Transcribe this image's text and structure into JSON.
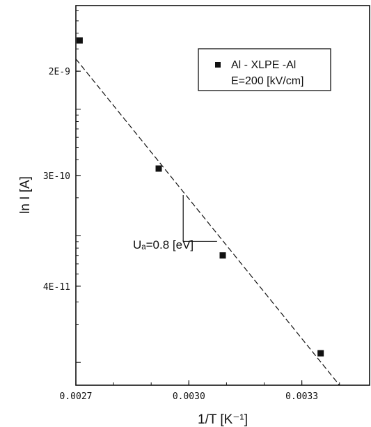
{
  "chart_data": {
    "type": "scatter",
    "xlabel": "1/T [K⁻¹]",
    "ylabel": "ln I [A]",
    "y_scale": "log",
    "xlim": [
      0.0027,
      0.00348
    ],
    "ylim": [
      6.6e-12,
      6.6e-09
    ],
    "xticks": [
      {
        "value": 0.0027,
        "label": "0.0027"
      },
      {
        "value": 0.003,
        "label": "0.0030"
      },
      {
        "value": 0.0033,
        "label": "0.0033"
      }
    ],
    "yticks": [
      {
        "value": 2e-09,
        "label": "2E-9"
      },
      {
        "value": 3e-10,
        "label": "3E-10"
      },
      {
        "value": 4e-11,
        "label": "4E-11"
      }
    ],
    "series": [
      {
        "name": "Al - XLPE -Al",
        "marker": "square",
        "color": "#111111",
        "points": [
          {
            "x": 0.00271,
            "y": 3.5e-09
          },
          {
            "x": 0.00292,
            "y": 3.4e-10
          },
          {
            "x": 0.00309,
            "y": 7e-11
          },
          {
            "x": 0.00335,
            "y": 1.18e-11
          }
        ]
      }
    ],
    "fit_line": {
      "style": "dashed",
      "color": "#111111",
      "points": [
        {
          "x": 0.0027,
          "y": 2.5e-09
        },
        {
          "x": 0.0034,
          "y": 6.6e-12
        }
      ]
    },
    "slope_triangle": {
      "vertical_x": 0.002985,
      "top_y": 2.1e-10,
      "bottom_y": 9.05e-11,
      "right_x": 0.003075
    },
    "legend": {
      "position": "top-right",
      "entries": [
        "Al - XLPE -Al",
        "E=200 [kV/cm]"
      ]
    },
    "annotations": [
      {
        "text": "Uₐ=0.8 [eV]"
      }
    ],
    "grid": false
  }
}
